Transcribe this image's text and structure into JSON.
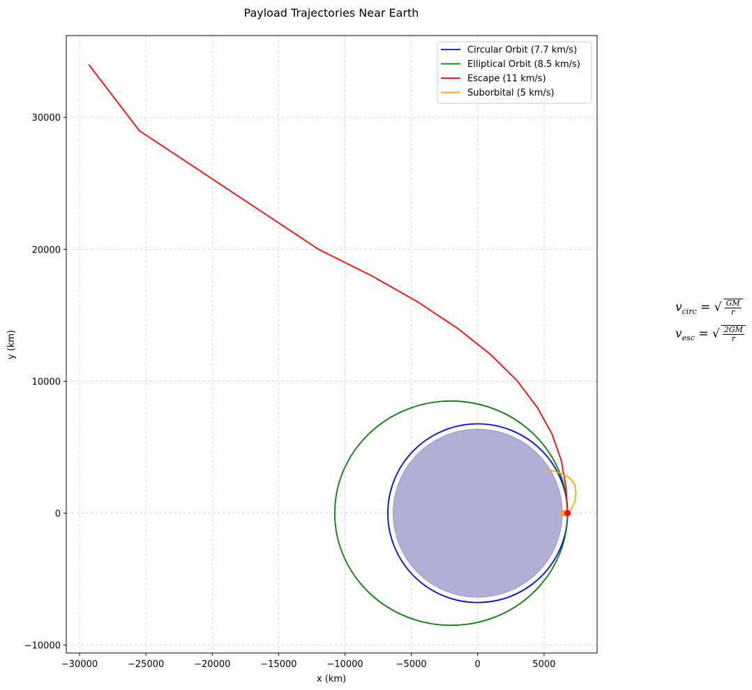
{
  "chart_data": {
    "type": "line",
    "title": "Payload Trajectories Near Earth",
    "xlabel": "x (km)",
    "ylabel": "y (km)",
    "xlim": [
      -31000,
      9000
    ],
    "ylim": [
      -10600,
      36200
    ],
    "xticks": [
      -30000,
      -25000,
      -20000,
      -15000,
      -10000,
      -5000,
      0,
      5000
    ],
    "yticks": [
      -10000,
      0,
      10000,
      20000,
      30000
    ],
    "xtick_labels": [
      "−30000",
      "−25000",
      "−20000",
      "−15000",
      "−10000",
      "−5000",
      "0",
      "5000"
    ],
    "ytick_labels": [
      "−10000",
      "0",
      "10000",
      "20000",
      "30000"
    ],
    "grid": true,
    "legend_position": "top-right",
    "earth": {
      "radius_km": 6371,
      "color": "#b0b0d6"
    },
    "series": [
      {
        "name": "Circular Orbit (7.7 km/s)",
        "color": "#0000ee",
        "shape": "circle",
        "center": [
          0,
          0
        ],
        "radius": 6771
      },
      {
        "name": "Elliptical Orbit (8.5 km/s)",
        "color": "#008000",
        "shape": "ellipse",
        "center": [
          -2000,
          0
        ],
        "semi_major": 8771,
        "semi_minor": 8500
      },
      {
        "name": "Escape (11 km/s)",
        "color": "#ff0000",
        "shape": "path",
        "x": [
          6771,
          6650,
          6300,
          5600,
          4500,
          3000,
          1000,
          -1500,
          -4500,
          -8000,
          -12000,
          -16500,
          -21000,
          -25500,
          -29300
        ],
        "y": [
          0,
          2000,
          4000,
          6000,
          8000,
          10000,
          12000,
          14000,
          16000,
          18000,
          20000,
          23000,
          26000,
          29000,
          34000
        ]
      },
      {
        "name": "Suborbital (5 km/s)",
        "color": "#ffa500",
        "shape": "path",
        "x": [
          6771,
          7000,
          7300,
          7400,
          7300,
          6900,
          6300,
          5700,
          5100
        ],
        "y": [
          0,
          200,
          800,
          1500,
          2200,
          2700,
          3000,
          3200,
          3300
        ]
      }
    ],
    "markers": [
      {
        "x": 6500,
        "y": 0,
        "color": "#ffa500"
      },
      {
        "x": 6771,
        "y": 0,
        "color": "#ff0000"
      }
    ],
    "annotations": [
      {
        "var": "v",
        "sub": "circ",
        "numerator": "GM",
        "denominator": "r"
      },
      {
        "var": "v",
        "sub": "esc",
        "numerator": "2GM",
        "denominator": "r"
      }
    ]
  }
}
